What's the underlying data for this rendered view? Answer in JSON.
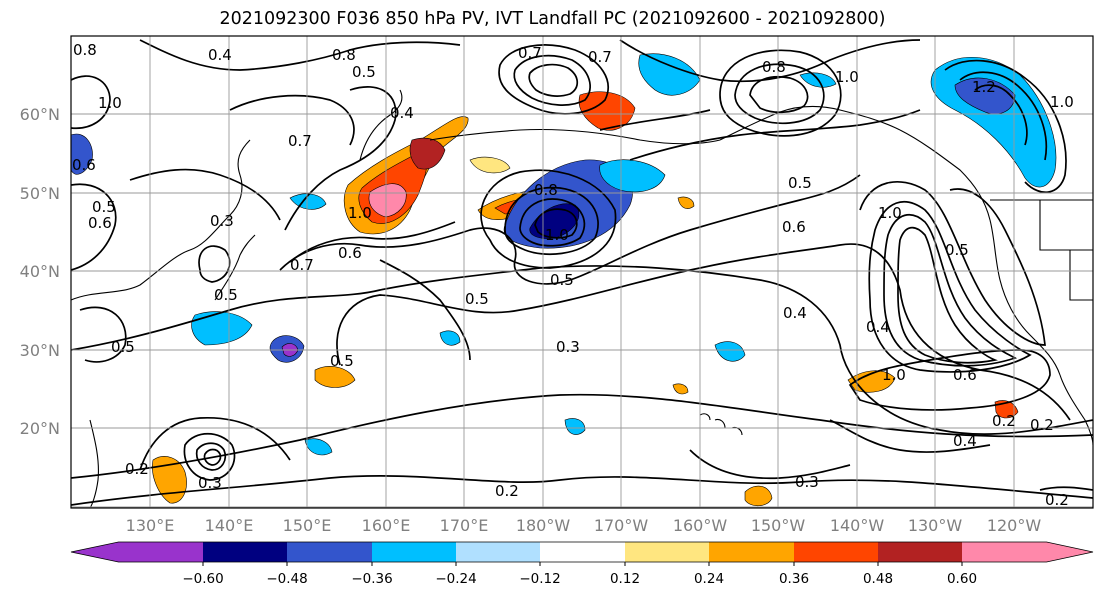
{
  "title": "2021092300 F036 850 hPa PV, IVT Landfall PC (2021092600 - 2021092800)",
  "lat_labels": [
    "60°N",
    "50°N",
    "40°N",
    "30°N",
    "20°N"
  ],
  "lon_labels": [
    "130°E",
    "140°E",
    "150°E",
    "160°E",
    "170°E",
    "180°W",
    "170°W",
    "160°W",
    "150°W",
    "140°W",
    "130°W",
    "120°W"
  ],
  "colorbar": {
    "ticks": [
      "−0.60",
      "−0.48",
      "−0.36",
      "−0.24",
      "−0.12",
      "0.12",
      "0.24",
      "0.36",
      "0.48",
      "0.60"
    ],
    "colors": [
      "#9933cc",
      "#000080",
      "#3355cc",
      "#00bfff",
      "#b0e0ff",
      "#ffffff",
      "#ffe680",
      "#ffa500",
      "#ff4500",
      "#b22222",
      "#ff88aa"
    ]
  },
  "contour_labels": [
    "0.8",
    "0.4",
    "0.5",
    "0.7",
    "0.7",
    "0.8",
    "1.0",
    "1.2",
    "1.0",
    "1.0",
    "0.6",
    "0.5",
    "0.3",
    "0.7",
    "0.7",
    "0.6",
    "0.6",
    "0.8",
    "1.0",
    "0.5",
    "0.6",
    "0.5",
    "0.5",
    "0.5",
    "0.3",
    "0.4",
    "0.4",
    "1.0",
    "0.6",
    "0.5",
    "0.5",
    "1.0",
    "0.4",
    "0.2",
    "0.2",
    "0.2",
    "0.3",
    "0.2",
    "0.3",
    "0.2",
    "0.5",
    "0.8",
    "0.4",
    "1.0"
  ]
}
